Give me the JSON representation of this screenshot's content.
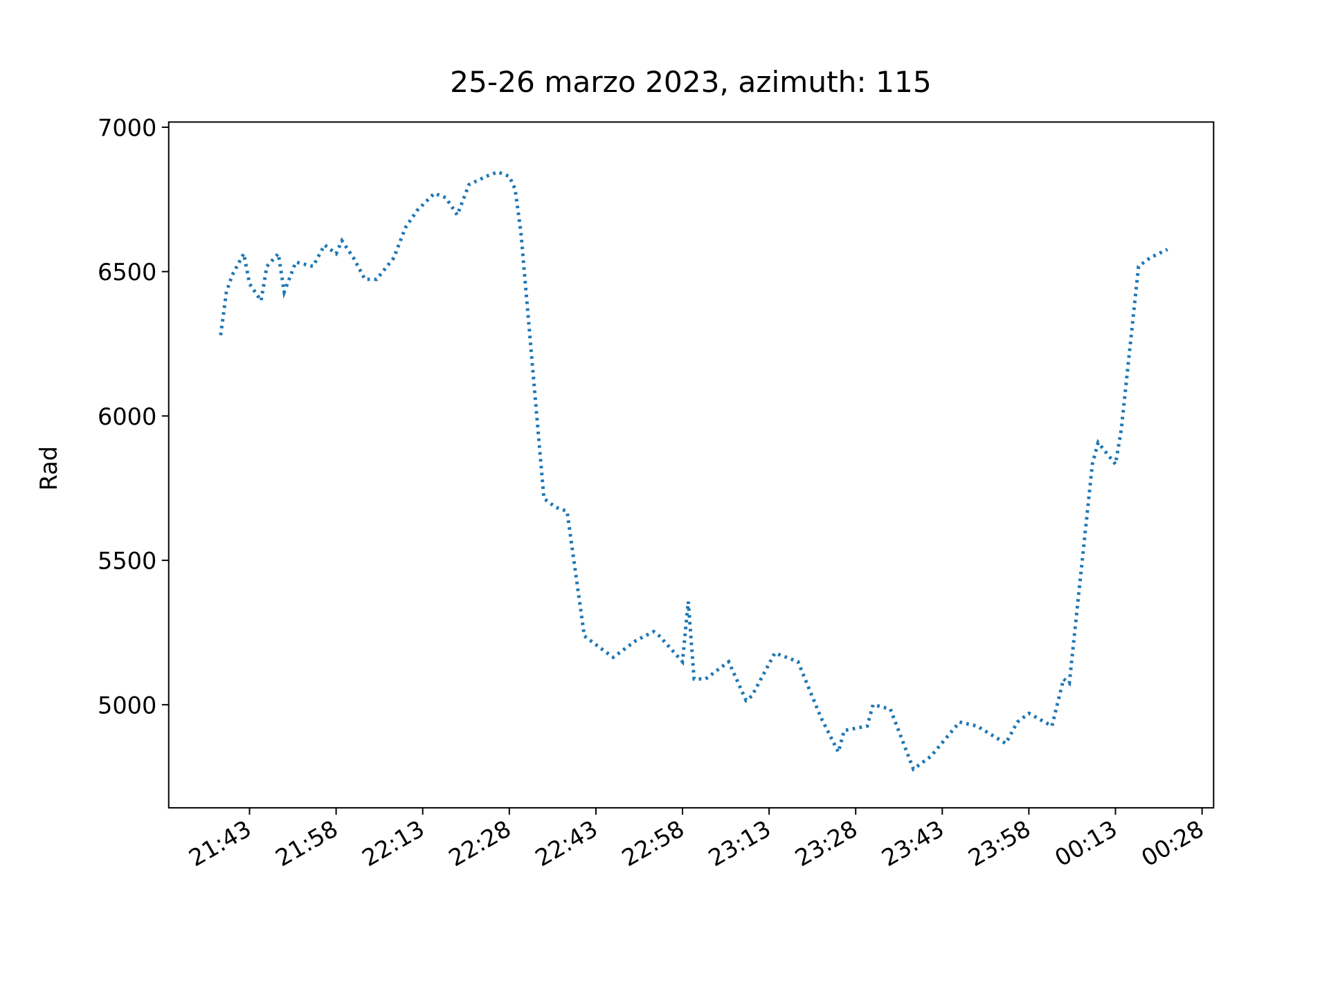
{
  "chart_data": {
    "type": "line",
    "title": "25-26 marzo 2023, azimuth: 115",
    "y_label": "Rad",
    "color": "#1f77b4",
    "line_style": "dotted",
    "x": [
      "21:38",
      "21:39",
      "21:40",
      "21:42",
      "21:43",
      "21:45",
      "21:46",
      "21:48",
      "21:49",
      "21:51",
      "21:54",
      "21:56",
      "21:58",
      "21:59",
      "22:01",
      "22:03",
      "22:05",
      "22:08",
      "22:10",
      "22:12",
      "22:15",
      "22:17",
      "22:19",
      "22:21",
      "22:24",
      "22:26",
      "22:28",
      "22:29",
      "22:30",
      "22:34",
      "22:36",
      "22:38",
      "22:41",
      "22:44",
      "22:46",
      "22:50",
      "22:53",
      "22:54",
      "22:58",
      "22:59",
      "23:00",
      "23:02",
      "23:06",
      "23:09",
      "23:10",
      "23:14",
      "23:16",
      "23:18",
      "23:22",
      "23:25",
      "23:26",
      "23:30",
      "23:31",
      "23:34",
      "23:38",
      "23:41",
      "23:46",
      "23:49",
      "23:54",
      "23:56",
      "23:58",
      "00:02",
      "00:04",
      "00:05",
      "00:09",
      "00:10",
      "00:13",
      "00:14",
      "00:17",
      "00:19",
      "00:22"
    ],
    "values": [
      6280,
      6429,
      6488,
      6562,
      6458,
      6399,
      6518,
      6562,
      6429,
      6533,
      6518,
      6592,
      6562,
      6607,
      6548,
      6473,
      6473,
      6548,
      6652,
      6711,
      6771,
      6756,
      6696,
      6801,
      6830,
      6845,
      6830,
      6786,
      6637,
      5714,
      5684,
      5670,
      5238,
      5193,
      5164,
      5223,
      5253,
      5238,
      5149,
      5357,
      5089,
      5089,
      5149,
      5015,
      5030,
      5179,
      5164,
      5149,
      4955,
      4836,
      4911,
      4926,
      5000,
      4985,
      4777,
      4821,
      4940,
      4926,
      4866,
      4940,
      4970,
      4926,
      5089,
      5074,
      5833,
      5908,
      5833,
      5952,
      6518,
      6548,
      6577
    ],
    "xlim": [
      "21:29",
      "00:30"
    ],
    "xticks": [
      "21:43",
      "21:58",
      "22:13",
      "22:28",
      "22:43",
      "22:58",
      "23:13",
      "23:28",
      "23:43",
      "23:58",
      "00:13",
      "00:28"
    ],
    "ylim": [
      4643,
      7018
    ],
    "yticks": [
      5000,
      5500,
      6000,
      6500,
      7000
    ]
  }
}
